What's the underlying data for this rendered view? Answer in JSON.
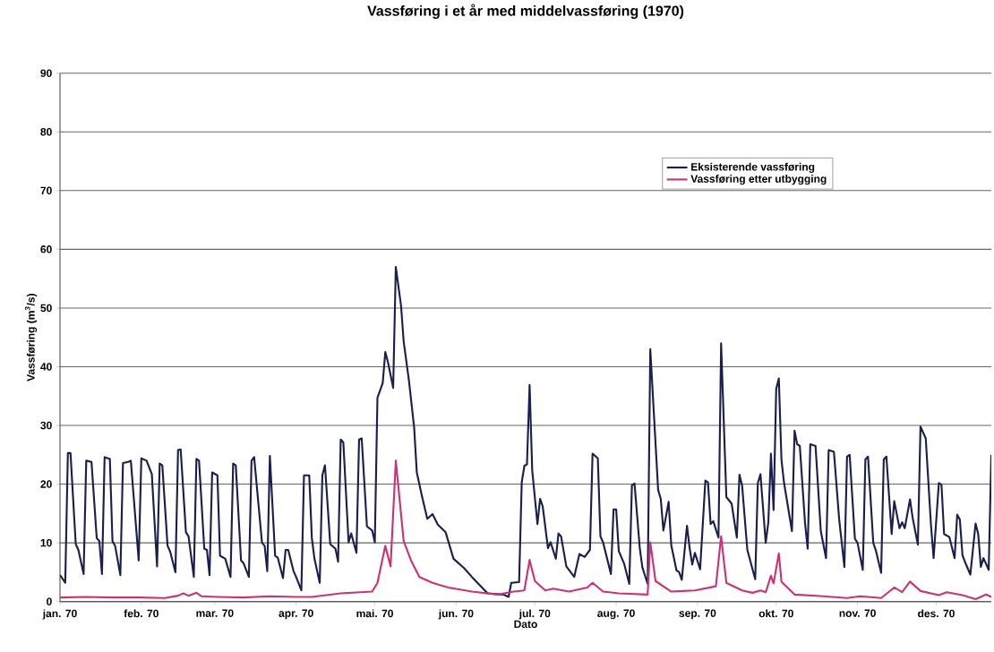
{
  "chart_data": {
    "type": "line",
    "title": "Vassføring i et år med middelvassføring (1970)",
    "xlabel": "Dato",
    "ylabel": "Vassføring (m$^{3}$/s)",
    "xlim": [
      "1970-01-01",
      "1970-12-22"
    ],
    "ylim": [
      0,
      90
    ],
    "yticks": [
      0,
      10,
      20,
      30,
      40,
      50,
      60,
      70,
      80,
      90
    ],
    "xticks": [
      {
        "value": "1970-01-01",
        "label": "jan. 70"
      },
      {
        "value": "1970-02-01",
        "label": "feb. 70"
      },
      {
        "value": "1970-03-01",
        "label": "mar. 70"
      },
      {
        "value": "1970-04-01",
        "label": "apr. 70"
      },
      {
        "value": "1970-05-01",
        "label": "mai. 70"
      },
      {
        "value": "1970-06-01",
        "label": "jun. 70"
      },
      {
        "value": "1970-07-01",
        "label": "jul. 70"
      },
      {
        "value": "1970-08-01",
        "label": "aug. 70"
      },
      {
        "value": "1970-09-01",
        "label": "sep. 70"
      },
      {
        "value": "1970-10-01",
        "label": "okt. 70"
      },
      {
        "value": "1970-11-01",
        "label": "nov. 70"
      },
      {
        "value": "1970-12-01",
        "label": "des. 70"
      }
    ],
    "grid": "y",
    "legend": "top right",
    "marker": "none",
    "line_style": "solid",
    "series": [
      {
        "name": "Eksisterende vassføring",
        "color": "#1a1f4e",
        "x": [
          "1970-01-01",
          "1970-01-03",
          "1970-01-04",
          "1970-01-05",
          "1970-01-07",
          "1970-01-08",
          "1970-01-10",
          "1970-01-11",
          "1970-01-13",
          "1970-01-15",
          "1970-01-16",
          "1970-01-17",
          "1970-01-18",
          "1970-01-20",
          "1970-01-21",
          "1970-01-22",
          "1970-01-24",
          "1970-01-25",
          "1970-01-27",
          "1970-01-28",
          "1970-01-31",
          "1970-02-01",
          "1970-02-03",
          "1970-02-05",
          "1970-02-07",
          "1970-02-08",
          "1970-02-09",
          "1970-02-11",
          "1970-02-12",
          "1970-02-14",
          "1970-02-15",
          "1970-02-16",
          "1970-02-18",
          "1970-02-19",
          "1970-02-21",
          "1970-02-22",
          "1970-02-23",
          "1970-02-25",
          "1970-02-26",
          "1970-02-27",
          "1970-02-28",
          "1970-03-02",
          "1970-03-03",
          "1970-03-05",
          "1970-03-07",
          "1970-03-08",
          "1970-03-09",
          "1970-03-11",
          "1970-03-12",
          "1970-03-14",
          "1970-03-15",
          "1970-03-16",
          "1970-03-19",
          "1970-03-20",
          "1970-03-21",
          "1970-03-22",
          "1970-03-24",
          "1970-03-25",
          "1970-03-27",
          "1970-03-28",
          "1970-03-29",
          "1970-03-31",
          "1970-04-01",
          "1970-04-03",
          "1970-04-04",
          "1970-04-06",
          "1970-04-07",
          "1970-04-08",
          "1970-04-10",
          "1970-04-11",
          "1970-04-12",
          "1970-04-14",
          "1970-04-16",
          "1970-04-17",
          "1970-04-18",
          "1970-04-19",
          "1970-04-21",
          "1970-04-22",
          "1970-04-24",
          "1970-04-25",
          "1970-04-26",
          "1970-04-28",
          "1970-04-30",
          "1970-05-01",
          "1970-05-02",
          "1970-05-04",
          "1970-05-05",
          "1970-05-06",
          "1970-05-08",
          "1970-05-09",
          "1970-05-11",
          "1970-05-12",
          "1970-05-14",
          "1970-05-16",
          "1970-05-17",
          "1970-05-19",
          "1970-05-21",
          "1970-05-23",
          "1970-05-25",
          "1970-05-28",
          "1970-05-31",
          "1970-06-04",
          "1970-06-07",
          "1970-06-13",
          "1970-06-19",
          "1970-06-21",
          "1970-06-22",
          "1970-06-25",
          "1970-06-26",
          "1970-06-27",
          "1970-06-28",
          "1970-06-29",
          "1970-06-30",
          "1970-07-02",
          "1970-07-03",
          "1970-07-04",
          "1970-07-06",
          "1970-07-07",
          "1970-07-09",
          "1970-07-10",
          "1970-07-11",
          "1970-07-13",
          "1970-07-16",
          "1970-07-18",
          "1970-07-20",
          "1970-07-22",
          "1970-07-23",
          "1970-07-25",
          "1970-07-26",
          "1970-07-27",
          "1970-07-30",
          "1970-07-31",
          "1970-08-01",
          "1970-08-02",
          "1970-08-04",
          "1970-08-06",
          "1970-08-07",
          "1970-08-08",
          "1970-08-10",
          "1970-08-11",
          "1970-08-13",
          "1970-08-14",
          "1970-08-17",
          "1970-08-18",
          "1970-08-19",
          "1970-08-21",
          "1970-08-22",
          "1970-08-24",
          "1970-08-25",
          "1970-08-26",
          "1970-08-28",
          "1970-08-29",
          "1970-08-30",
          "1970-08-31",
          "1970-09-02",
          "1970-09-04",
          "1970-09-05",
          "1970-09-06",
          "1970-09-07",
          "1970-09-09",
          "1970-09-10",
          "1970-09-12",
          "1970-09-14",
          "1970-09-16",
          "1970-09-17",
          "1970-09-18",
          "1970-09-20",
          "1970-09-23",
          "1970-09-24",
          "1970-09-25",
          "1970-09-27",
          "1970-09-28",
          "1970-09-29",
          "1970-09-30",
          "1970-10-01",
          "1970-10-02",
          "1970-10-03",
          "1970-10-04",
          "1970-10-07",
          "1970-10-08",
          "1970-10-09",
          "1970-10-10",
          "1970-10-12",
          "1970-10-13",
          "1970-10-14",
          "1970-10-16",
          "1970-10-18",
          "1970-10-20",
          "1970-10-21",
          "1970-10-23",
          "1970-10-25",
          "1970-10-27",
          "1970-10-28",
          "1970-10-29",
          "1970-10-31",
          "1970-11-01",
          "1970-11-03",
          "1970-11-04",
          "1970-11-05",
          "1970-11-07",
          "1970-11-08",
          "1970-11-10",
          "1970-11-11",
          "1970-11-12",
          "1970-11-14",
          "1970-11-15",
          "1970-11-17",
          "1970-11-18",
          "1970-11-19",
          "1970-11-21",
          "1970-11-22",
          "1970-11-24",
          "1970-11-25",
          "1970-11-27",
          "1970-11-29",
          "1970-11-30",
          "1970-12-02",
          "1970-12-03",
          "1970-12-04",
          "1970-12-06",
          "1970-12-08",
          "1970-12-09",
          "1970-12-10",
          "1970-12-11",
          "1970-12-12",
          "1970-12-14",
          "1970-12-16",
          "1970-12-17",
          "1970-12-18",
          "1970-12-19",
          "1970-12-21",
          "1970-12-22"
        ],
        "values": [
          4.5,
          3.2,
          25.3,
          25.3,
          9.8,
          8.8,
          4.7,
          24.0,
          23.8,
          10.8,
          10.3,
          4.7,
          24.6,
          24.3,
          10.3,
          9.5,
          4.5,
          23.6,
          23.8,
          24.0,
          7.0,
          24.4,
          24.0,
          21.7,
          6.0,
          23.5,
          23.2,
          9.5,
          8.5,
          5.0,
          25.8,
          25.9,
          11.8,
          11.1,
          4.2,
          24.3,
          24.0,
          9.0,
          8.8,
          4.5,
          22.0,
          21.5,
          7.8,
          7.3,
          4.2,
          23.5,
          23.2,
          7.0,
          6.5,
          4.2,
          24.0,
          24.6,
          10.0,
          9.5,
          5.2,
          24.8,
          7.8,
          7.5,
          4.0,
          8.8,
          8.8,
          5.2,
          4.2,
          1.9,
          21.5,
          21.5,
          10.8,
          7.3,
          3.2,
          21.5,
          23.2,
          9.8,
          9.0,
          6.8,
          27.6,
          27.1,
          10.1,
          11.6,
          8.3,
          27.6,
          27.8,
          12.8,
          12.1,
          10.1,
          34.7,
          37.2,
          42.5,
          40.8,
          36.4,
          57.0,
          50.4,
          44.3,
          37.7,
          29.6,
          22.0,
          17.9,
          14.1,
          14.9,
          13.1,
          11.8,
          7.3,
          5.7,
          4.2,
          1.4,
          1.2,
          0.8,
          3.2,
          3.3,
          20.3,
          23.1,
          23.4,
          36.9,
          22.3,
          13.2,
          17.5,
          16.2,
          9.1,
          10.1,
          7.3,
          11.6,
          11.1,
          6.0,
          4.2,
          8.1,
          7.6,
          8.8,
          25.2,
          24.4,
          11.1,
          10.1,
          4.7,
          15.7,
          15.7,
          8.6,
          6.5,
          3.0,
          19.8,
          20.1,
          9.1,
          5.8,
          3.0,
          43.0,
          19.0,
          17.5,
          12.1,
          17.0,
          9.6,
          5.3,
          5.0,
          3.7,
          12.9,
          9.1,
          6.3,
          8.3,
          5.5,
          20.6,
          20.3,
          13.2,
          13.7,
          10.9,
          44.0,
          17.8,
          16.7,
          10.9,
          21.6,
          19.8,
          8.8,
          3.8,
          20.2,
          21.7,
          10.0,
          13.5,
          25.2,
          15.6,
          36.2,
          38.0,
          24.2,
          20.2,
          12.0,
          29.1,
          26.8,
          26.5,
          13.3,
          9.0,
          26.8,
          26.5,
          12.0,
          7.4,
          25.8,
          25.5,
          14.0,
          5.9,
          24.7,
          25.0,
          10.7,
          10.0,
          5.4,
          24.2,
          24.7,
          10.0,
          8.7,
          4.9,
          24.2,
          24.7,
          11.5,
          17.1,
          12.5,
          13.5,
          12.5,
          17.4,
          14.3,
          9.7,
          29.8,
          27.8,
          13.0,
          7.4,
          20.2,
          19.9,
          11.5,
          11.0,
          7.4,
          14.8,
          14.0,
          7.9,
          6.7,
          4.6,
          13.3,
          11.5,
          5.9,
          7.4,
          5.4,
          25.0
        ]
      },
      {
        "name": "Vassføring etter utbygging",
        "color": "#cc3377",
        "x": [
          "1970-01-01",
          "1970-01-11",
          "1970-01-21",
          "1970-01-31",
          "1970-02-10",
          "1970-02-15",
          "1970-02-17",
          "1970-02-19",
          "1970-02-22",
          "1970-02-24",
          "1970-03-02",
          "1970-03-12",
          "1970-03-22",
          "1970-04-01",
          "1970-04-07",
          "1970-04-18",
          "1970-04-30",
          "1970-05-02",
          "1970-05-05",
          "1970-05-07",
          "1970-05-09",
          "1970-05-12",
          "1970-05-15",
          "1970-05-18",
          "1970-05-23",
          "1970-05-29",
          "1970-06-07",
          "1970-06-17",
          "1970-06-23",
          "1970-06-27",
          "1970-06-29",
          "1970-07-01",
          "1970-07-05",
          "1970-07-08",
          "1970-07-14",
          "1970-07-21",
          "1970-07-23",
          "1970-07-27",
          "1970-08-02",
          "1970-08-13",
          "1970-08-14",
          "1970-08-16",
          "1970-08-22",
          "1970-08-31",
          "1970-09-08",
          "1970-09-10",
          "1970-09-12",
          "1970-09-18",
          "1970-09-22",
          "1970-09-25",
          "1970-09-27",
          "1970-09-29",
          "1970-09-30",
          "1970-10-02",
          "1970-10-03",
          "1970-10-08",
          "1970-10-19",
          "1970-10-28",
          "1970-11-02",
          "1970-11-10",
          "1970-11-15",
          "1970-11-18",
          "1970-11-21",
          "1970-11-25",
          "1970-12-02",
          "1970-12-05",
          "1970-12-11",
          "1970-12-16",
          "1970-12-20",
          "1970-12-22"
        ],
        "values": [
          0.7,
          0.8,
          0.7,
          0.7,
          0.6,
          1.0,
          1.4,
          1.0,
          1.5,
          0.9,
          0.8,
          0.7,
          0.9,
          0.8,
          0.8,
          1.4,
          1.7,
          3.2,
          9.5,
          6.0,
          24.0,
          10.3,
          6.8,
          4.2,
          3.2,
          2.4,
          1.7,
          1.2,
          1.7,
          1.9,
          7.1,
          3.5,
          1.9,
          2.2,
          1.7,
          2.4,
          3.2,
          1.7,
          1.4,
          1.2,
          10.1,
          3.5,
          1.7,
          1.9,
          2.6,
          11.1,
          3.2,
          1.9,
          1.5,
          1.9,
          1.6,
          4.4,
          3.1,
          8.2,
          3.4,
          1.2,
          0.9,
          0.6,
          0.9,
          0.6,
          2.4,
          1.6,
          3.4,
          1.8,
          1.1,
          1.6,
          1.1,
          0.4,
          1.2,
          0.8
        ]
      }
    ]
  }
}
